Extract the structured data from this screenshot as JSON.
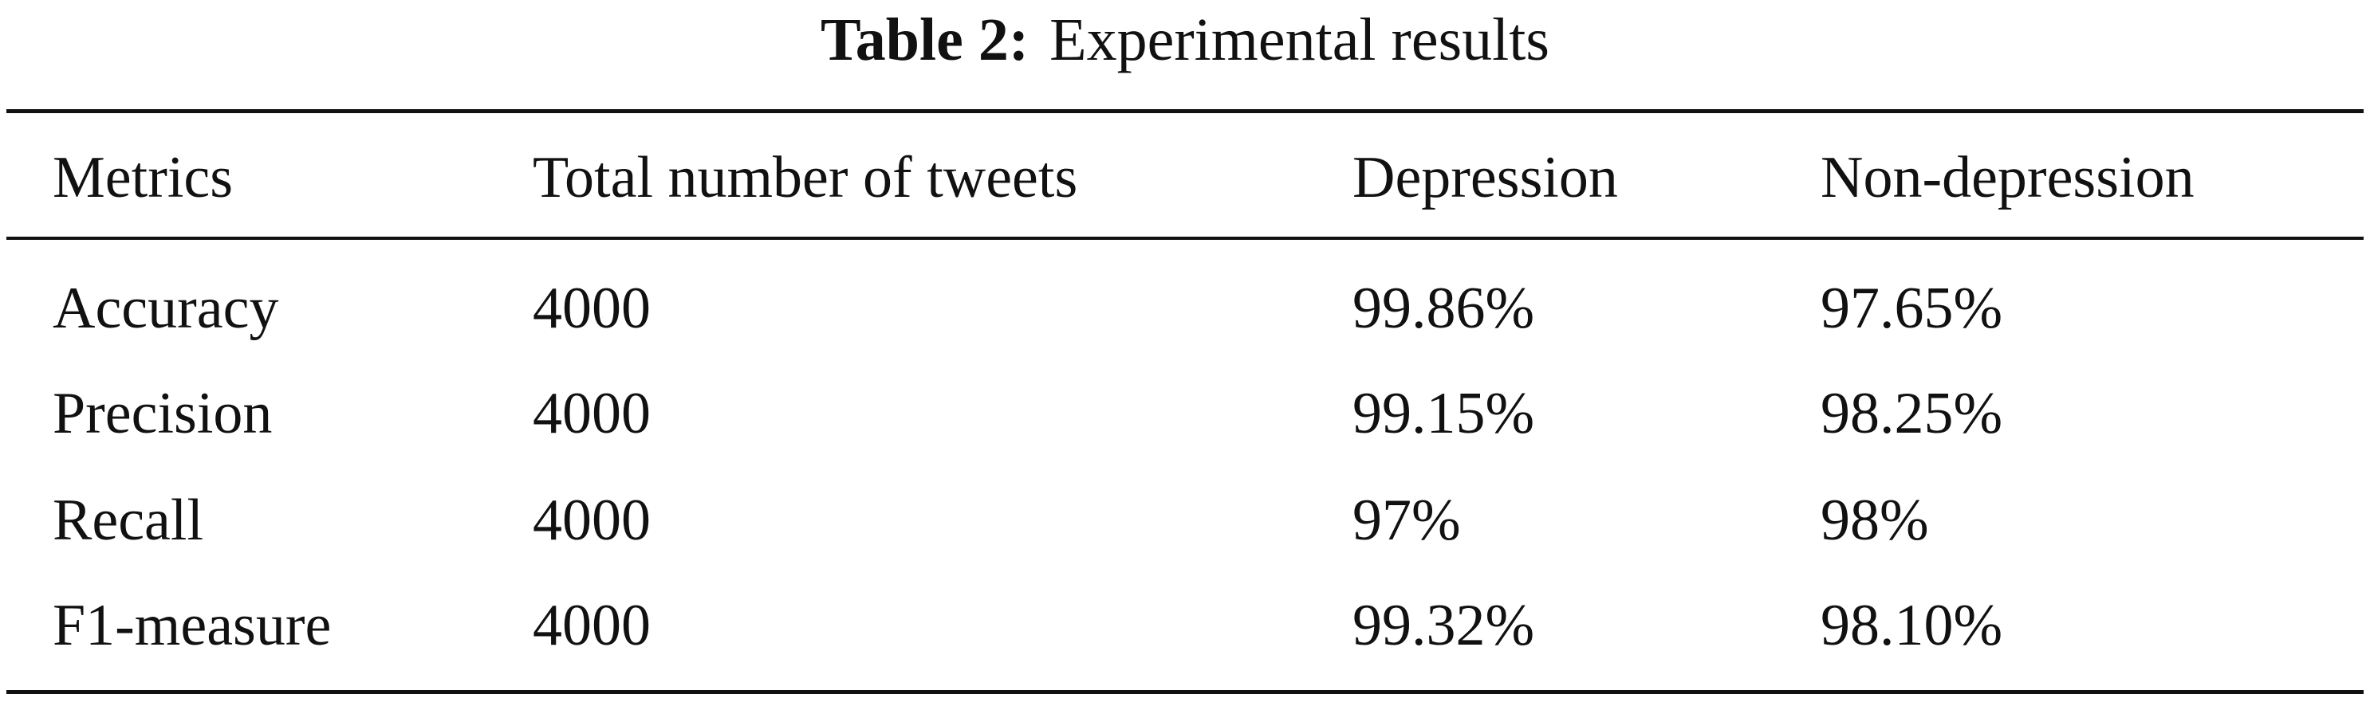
{
  "table": {
    "caption_label": "Table 2:",
    "caption_text": "Experimental results",
    "headers": [
      "Metrics",
      "Total number of tweets",
      "Depression",
      "Non-depression"
    ],
    "rows": [
      [
        "Accuracy",
        "4000",
        "99.86%",
        "97.65%"
      ],
      [
        "Precision",
        "4000",
        "99.15%",
        "98.25%"
      ],
      [
        "Recall",
        "4000",
        "97%",
        "98%"
      ],
      [
        "F1-measure",
        "4000",
        "99.32%",
        "98.10%"
      ]
    ]
  }
}
